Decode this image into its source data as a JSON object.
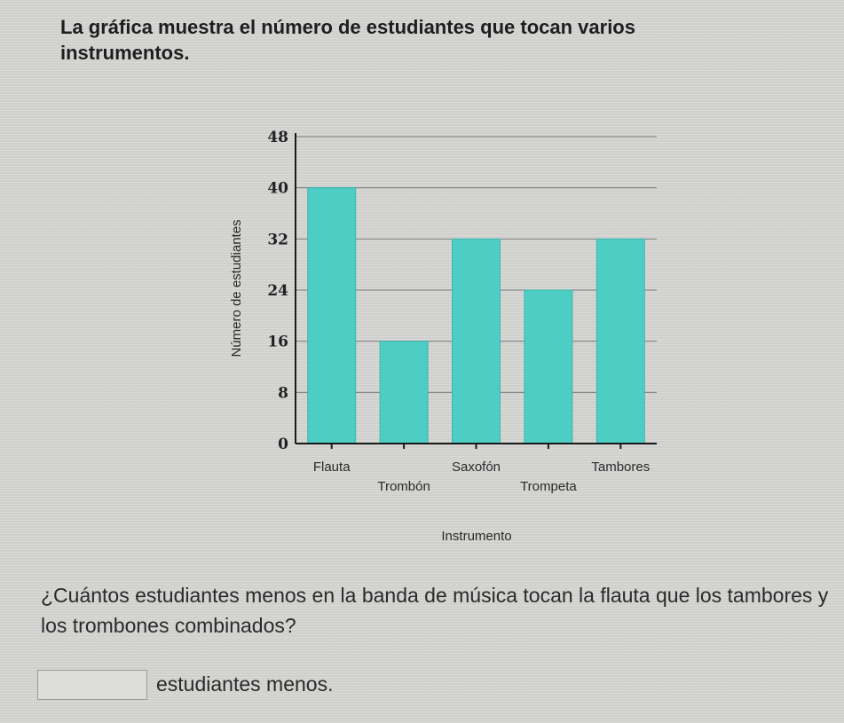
{
  "prompt": {
    "intro": "La gráfica muestra el número de estudiantes que tocan varios instrumentos.",
    "question": "¿Cuántos estudiantes menos en la banda de música tocan la flauta que los tambores y los trombones combinados?",
    "answer_suffix": "estudiantes menos."
  },
  "answer": {
    "value": ""
  },
  "colors": {
    "bar": "#4ecdc4",
    "bar_edge": "#3bb8ae",
    "grid": "#7a7a7a",
    "axis": "#1a1a1a"
  },
  "chart_data": {
    "type": "bar",
    "categories": [
      "Flauta",
      "Trombón",
      "Saxofón",
      "Trompeta",
      "Tambores"
    ],
    "values": [
      40,
      16,
      32,
      24,
      32
    ],
    "title": "",
    "xlabel": "Instrumento",
    "ylabel": "Número de estudiantes",
    "ylim": [
      0,
      48
    ],
    "yticks": [
      "0",
      "8",
      "16",
      "24",
      "32",
      "40",
      "48"
    ],
    "grid": true
  }
}
